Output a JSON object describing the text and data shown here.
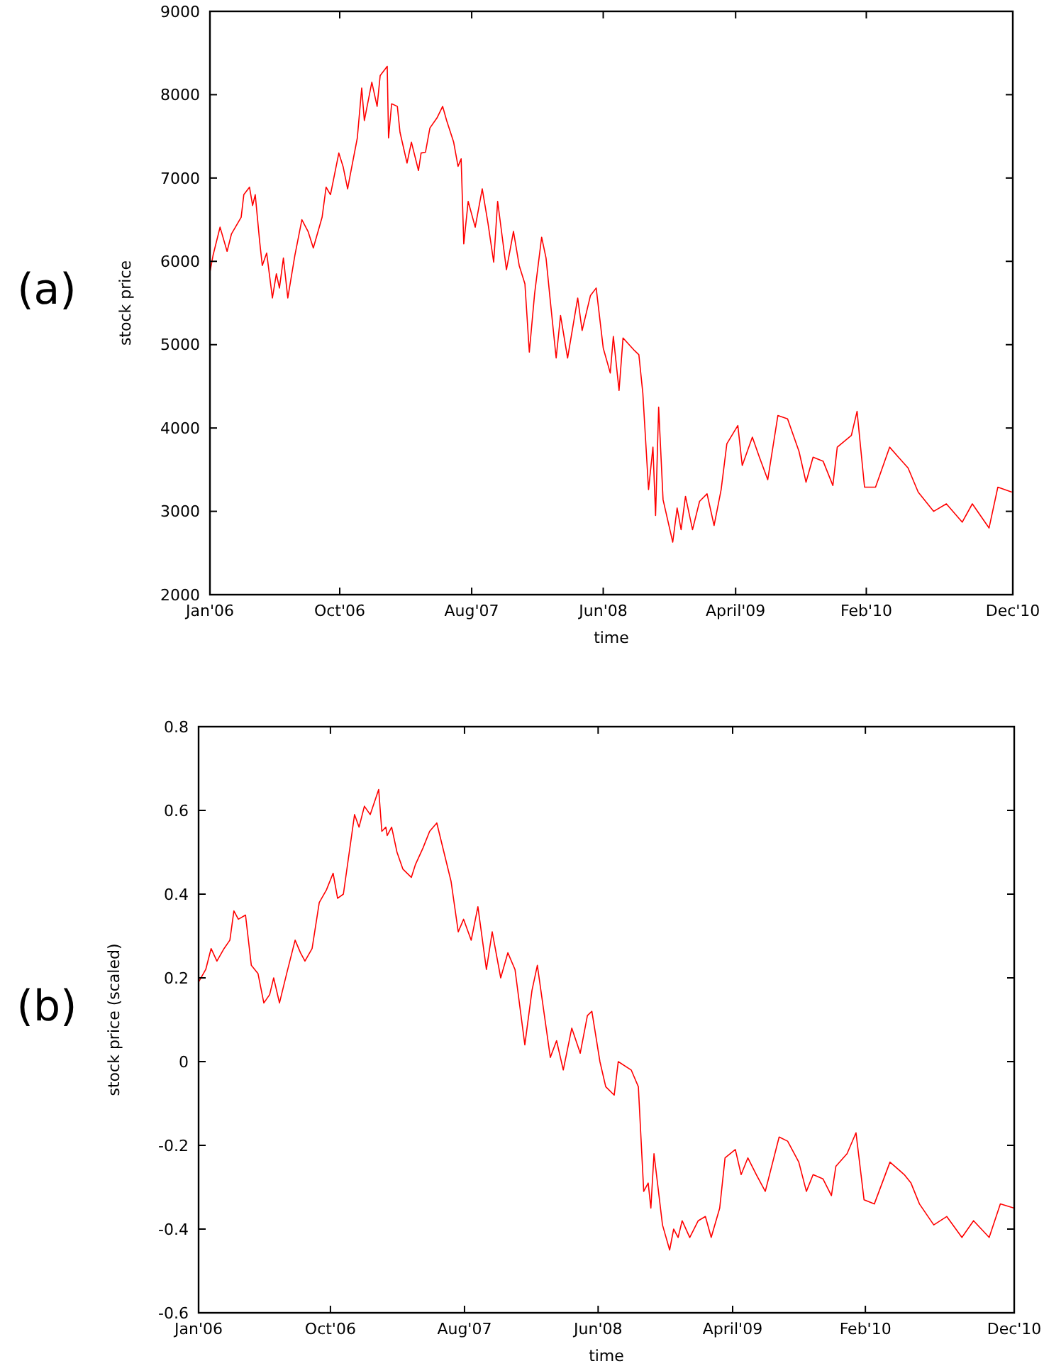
{
  "chart_data": [
    {
      "type": "line",
      "annotations": [
        "(a)"
      ],
      "xlabel": "time",
      "ylabel": "stock price",
      "xlim": [
        "2006-01-01",
        "2010-12-31"
      ],
      "ylim": [
        2000,
        9000
      ],
      "xticks": [
        {
          "value": "2006-01-01",
          "label": "Jan'06"
        },
        {
          "value": "2006-10-23",
          "label": "Oct'06"
        },
        {
          "value": "2007-08-19",
          "label": "Aug'07"
        },
        {
          "value": "2008-06-13",
          "label": "Jun'08"
        },
        {
          "value": "2009-04-10",
          "label": "April'09"
        },
        {
          "value": "2010-02-01",
          "label": "Feb'10"
        },
        {
          "value": "2010-12-31",
          "label": "Dec'10"
        }
      ],
      "yticks": [
        2000,
        3000,
        4000,
        5000,
        6000,
        7000,
        8000,
        9000
      ],
      "series": [
        {
          "color": "#ff0000",
          "x": [
            "2006-01-01",
            "2006-01-08",
            "2006-01-24",
            "2006-02-09",
            "2006-02-19",
            "2006-03-13",
            "2006-03-19",
            "2006-04-01",
            "2006-04-08",
            "2006-04-14",
            "2006-04-24",
            "2006-04-30",
            "2006-05-10",
            "2006-05-23",
            "2006-06-01",
            "2006-06-08",
            "2006-06-17",
            "2006-06-27",
            "2006-07-13",
            "2006-07-29",
            "2006-08-12",
            "2006-08-24",
            "2006-09-13",
            "2006-09-22",
            "2006-10-02",
            "2006-10-21",
            "2006-10-31",
            "2006-11-10",
            "2006-11-16",
            "2006-12-02",
            "2006-12-12",
            "2006-12-18",
            "2007-01-04",
            "2007-01-16",
            "2007-01-23",
            "2007-02-08",
            "2007-02-11",
            "2007-02-18",
            "2007-03-03",
            "2007-03-09",
            "2007-03-25",
            "2007-04-04",
            "2007-04-20",
            "2007-04-26",
            "2007-05-06",
            "2007-05-16",
            "2007-06-01",
            "2007-06-14",
            "2007-06-23",
            "2007-07-09",
            "2007-07-19",
            "2007-07-26",
            "2007-08-01",
            "2007-08-11",
            "2007-08-27",
            "2007-09-12",
            "2007-09-25",
            "2007-10-08",
            "2007-10-17",
            "2007-11-06",
            "2007-11-22",
            "2007-12-05",
            "2007-12-18",
            "2007-12-28",
            "2008-01-09",
            "2008-01-25",
            "2008-02-04",
            "2008-02-14",
            "2008-02-27",
            "2008-03-08",
            "2008-03-24",
            "2008-04-16",
            "2008-04-26",
            "2008-05-15",
            "2008-05-28",
            "2008-06-13",
            "2008-06-29",
            "2008-07-06",
            "2008-07-19",
            "2008-07-28",
            "2008-08-23",
            "2008-09-02",
            "2008-09-11",
            "2008-09-24",
            "2008-10-04",
            "2008-10-10",
            "2008-10-17",
            "2008-10-27",
            "2008-11-18",
            "2008-11-28",
            "2008-12-07",
            "2008-12-17",
            "2009-01-02",
            "2009-01-18",
            "2009-02-04",
            "2009-02-20",
            "2009-03-08",
            "2009-03-21",
            "2009-04-15",
            "2009-04-25",
            "2009-05-18",
            "2009-06-03",
            "2009-06-22",
            "2009-07-15",
            "2009-08-06",
            "2009-09-01",
            "2009-09-17",
            "2009-10-03",
            "2009-10-26",
            "2009-11-17",
            "2009-11-27",
            "2009-12-29",
            "2010-01-11",
            "2010-01-28",
            "2010-02-22",
            "2010-03-26",
            "2010-04-15",
            "2010-05-07",
            "2010-05-30",
            "2010-07-04",
            "2010-08-02",
            "2010-09-07",
            "2010-09-30",
            "2010-11-07",
            "2010-11-27",
            "2010-12-29"
          ],
          "values": [
            5870,
            6070,
            6410,
            6120,
            6330,
            6530,
            6800,
            6890,
            6670,
            6800,
            6240,
            5950,
            6100,
            5560,
            5850,
            5680,
            6040,
            5560,
            6070,
            6500,
            6360,
            6160,
            6530,
            6890,
            6800,
            7300,
            7130,
            6870,
            7040,
            7480,
            8080,
            7690,
            8150,
            7860,
            8230,
            8340,
            7480,
            7890,
            7860,
            7550,
            7180,
            7430,
            7090,
            7300,
            7310,
            7600,
            7720,
            7860,
            7690,
            7430,
            7140,
            7230,
            6210,
            6720,
            6410,
            6870,
            6460,
            5990,
            6720,
            5900,
            6360,
            5950,
            5730,
            4910,
            5610,
            6290,
            6040,
            5510,
            4840,
            5350,
            4840,
            5560,
            5170,
            5590,
            5680,
            4960,
            4660,
            5100,
            4450,
            5080,
            4930,
            4880,
            4420,
            3260,
            3770,
            2950,
            4250,
            3140,
            2630,
            3040,
            2780,
            3180,
            2780,
            3120,
            3210,
            2830,
            3260,
            3810,
            4030,
            3550,
            3890,
            3650,
            3380,
            4150,
            4110,
            3720,
            3350,
            3650,
            3600,
            3310,
            3770,
            3910,
            4200,
            3290,
            3290,
            3770,
            3650,
            3520,
            3230,
            3000,
            3090,
            2870,
            3090,
            2800,
            3290,
            3230
          ]
        }
      ]
    },
    {
      "type": "line",
      "annotations": [
        "(b)"
      ],
      "xlabel": "time",
      "ylabel": "stock price (scaled)",
      "xlim": [
        "2006-01-01",
        "2010-12-31"
      ],
      "ylim": [
        -0.6,
        0.8
      ],
      "xticks": [
        {
          "value": "2006-01-01",
          "label": "Jan'06"
        },
        {
          "value": "2006-10-23",
          "label": "Oct'06"
        },
        {
          "value": "2007-08-19",
          "label": "Aug'07"
        },
        {
          "value": "2008-06-13",
          "label": "Jun'08"
        },
        {
          "value": "2009-04-10",
          "label": "April'09"
        },
        {
          "value": "2010-02-01",
          "label": "Feb'10"
        },
        {
          "value": "2010-12-31",
          "label": "Dec'10"
        }
      ],
      "yticks": [
        -0.6,
        -0.4,
        -0.2,
        0,
        0.2,
        0.4,
        0.6,
        0.8
      ],
      "series": [
        {
          "color": "#ff0000",
          "x": [
            "2006-01-01",
            "2006-01-17",
            "2006-01-29",
            "2006-02-11",
            "2006-02-27",
            "2006-03-12",
            "2006-03-21",
            "2006-03-31",
            "2006-04-16",
            "2006-04-29",
            "2006-05-14",
            "2006-05-27",
            "2006-06-09",
            "2006-06-18",
            "2006-07-01",
            "2006-07-17",
            "2006-08-05",
            "2006-08-17",
            "2006-08-27",
            "2006-09-12",
            "2006-09-28",
            "2006-10-14",
            "2006-10-29",
            "2006-11-08",
            "2006-11-21",
            "2006-12-16",
            "2006-12-26",
            "2007-01-07",
            "2007-01-20",
            "2007-02-08",
            "2007-02-15",
            "2007-02-24",
            "2007-02-27",
            "2007-03-09",
            "2007-03-21",
            "2007-04-03",
            "2007-04-22",
            "2007-05-01",
            "2007-05-18",
            "2007-06-02",
            "2007-06-18",
            "2007-07-04",
            "2007-07-20",
            "2007-08-05",
            "2007-08-17",
            "2007-09-03",
            "2007-09-18",
            "2007-10-07",
            "2007-10-20",
            "2007-11-08",
            "2007-11-24",
            "2007-12-10",
            "2008-01-01",
            "2008-01-17",
            "2008-01-29",
            "2008-02-27",
            "2008-03-12",
            "2008-03-27",
            "2008-04-15",
            "2008-05-04",
            "2008-05-20",
            "2008-05-30",
            "2008-06-17",
            "2008-06-30",
            "2008-07-19",
            "2008-07-28",
            "2008-08-26",
            "2008-09-11",
            "2008-09-23",
            "2008-10-03",
            "2008-10-09",
            "2008-10-16",
            "2008-11-04",
            "2008-11-20",
            "2008-11-29",
            "2008-12-09",
            "2008-12-18",
            "2009-01-04",
            "2009-01-23",
            "2009-02-08",
            "2009-02-21",
            "2009-03-12",
            "2009-03-24",
            "2009-04-16",
            "2009-04-29",
            "2009-05-14",
            "2009-06-02",
            "2009-06-22",
            "2009-07-23",
            "2009-08-11",
            "2009-09-05",
            "2009-09-22",
            "2009-10-07",
            "2009-10-29",
            "2009-11-17",
            "2009-11-27",
            "2009-12-22",
            "2010-01-11",
            "2010-01-29",
            "2010-02-21",
            "2010-03-28",
            "2010-04-29",
            "2010-05-14",
            "2010-06-02",
            "2010-07-04",
            "2010-08-02",
            "2010-09-05",
            "2010-10-01",
            "2010-11-05",
            "2010-11-30",
            "2010-12-31"
          ],
          "values": [
            0.19,
            0.22,
            0.27,
            0.24,
            0.27,
            0.29,
            0.36,
            0.34,
            0.35,
            0.23,
            0.21,
            0.14,
            0.16,
            0.2,
            0.14,
            0.21,
            0.29,
            0.26,
            0.24,
            0.27,
            0.38,
            0.41,
            0.45,
            0.39,
            0.4,
            0.59,
            0.56,
            0.61,
            0.59,
            0.65,
            0.55,
            0.56,
            0.54,
            0.56,
            0.5,
            0.46,
            0.44,
            0.47,
            0.51,
            0.55,
            0.57,
            0.5,
            0.43,
            0.31,
            0.34,
            0.29,
            0.37,
            0.22,
            0.31,
            0.2,
            0.26,
            0.22,
            0.04,
            0.17,
            0.23,
            0.01,
            0.05,
            -0.02,
            0.08,
            0.02,
            0.11,
            0.12,
            0,
            -0.06,
            -0.08,
            0,
            -0.02,
            -0.06,
            -0.31,
            -0.29,
            -0.35,
            -0.22,
            -0.39,
            -0.45,
            -0.4,
            -0.42,
            -0.38,
            -0.42,
            -0.38,
            -0.37,
            -0.42,
            -0.35,
            -0.23,
            -0.21,
            -0.27,
            -0.23,
            -0.27,
            -0.31,
            -0.18,
            -0.19,
            -0.24,
            -0.31,
            -0.27,
            -0.28,
            -0.32,
            -0.25,
            -0.22,
            -0.17,
            -0.33,
            -0.34,
            -0.24,
            -0.27,
            -0.29,
            -0.34,
            -0.39,
            -0.37,
            -0.42,
            -0.38,
            -0.42,
            -0.34,
            -0.35
          ]
        }
      ]
    }
  ]
}
